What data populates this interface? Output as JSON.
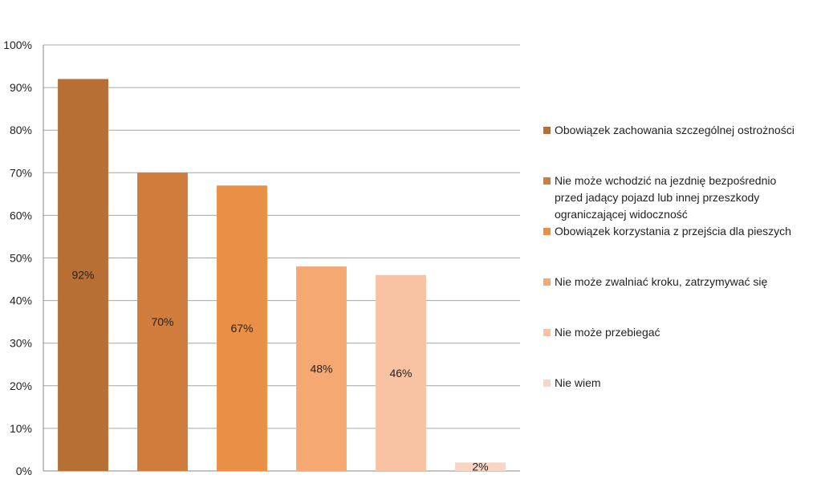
{
  "chart_data": {
    "type": "bar",
    "categories": [
      "Obowiązek zachowania szczególnej ostrożności",
      "Nie może wchodzić na jezdnię bezpośrednio przed jadący pojazd lub innej przeszkody ograniczającej widoczność",
      "Obowiązek korzystania z przejścia dla pieszych",
      "Nie może zwalniać kroku, zatrzymywać się",
      "Nie może przebiegać",
      "Nie wiem"
    ],
    "values": [
      92,
      70,
      67,
      48,
      46,
      2
    ],
    "data_labels": [
      "92%",
      "70%",
      "67%",
      "48%",
      "46%",
      "2%"
    ],
    "colors": [
      "#b86f34",
      "#cf7c3c",
      "#e99046",
      "#f5a872",
      "#f7c3a2",
      "#f9d5c3"
    ],
    "ylim": [
      0,
      100
    ],
    "yticks": [
      "0%",
      "10%",
      "20%",
      "30%",
      "40%",
      "50%",
      "60%",
      "70%",
      "80%",
      "90%",
      "100%"
    ],
    "grid": true,
    "legend_position": "right",
    "title": "",
    "xlabel": "",
    "ylabel": ""
  },
  "legend": {
    "items": [
      {
        "lines": [
          "Obowiązek zachowania szczególnej ostrożności"
        ]
      },
      {
        "lines": [
          "Nie może wchodzić na jezdnię bezpośrednio",
          "przed jadący pojazd lub innej przeszkody",
          "ograniczającej widoczność"
        ]
      },
      {
        "lines": [
          "Obowiązek korzystania z przejścia dla pieszych"
        ]
      },
      {
        "lines": [
          "Nie może zwalniać kroku, zatrzymywać się"
        ]
      },
      {
        "lines": [
          "Nie może przebiegać"
        ]
      },
      {
        "lines": [
          "Nie wiem"
        ]
      }
    ]
  }
}
